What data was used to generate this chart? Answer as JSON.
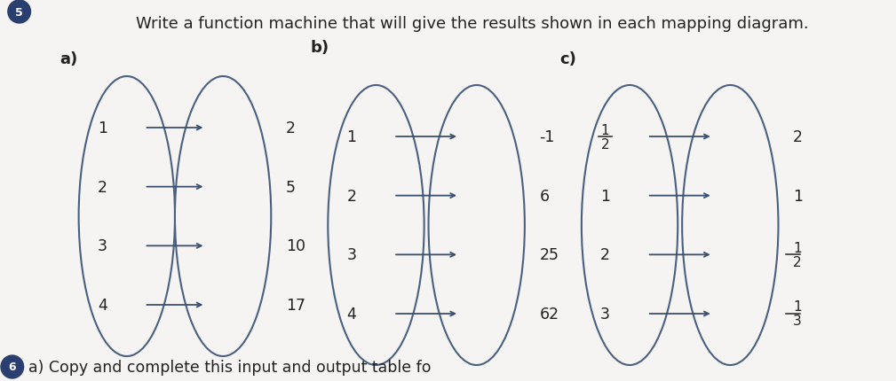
{
  "title": "Write a function machine that will give the results shown in each mapping diagram.",
  "question_number": "5",
  "bottom_text": "a) Copy and complete this input and output table fo",
  "bg_color": "#f5f4f2",
  "ellipse_color": "#4a6080",
  "arrow_color": "#3a5070",
  "text_color": "#222222",
  "diagram_a": {
    "label": "a)",
    "inputs": [
      "1",
      "2",
      "3",
      "4"
    ],
    "outputs": [
      "2",
      "5",
      "10",
      "17"
    ]
  },
  "diagram_b": {
    "label": "b)",
    "inputs": [
      "1",
      "2",
      "3",
      "4"
    ],
    "outputs": [
      "-1",
      "6",
      "25",
      "62"
    ]
  },
  "diagram_c": {
    "label": "c)",
    "inputs": [
      "1/2",
      "1",
      "2",
      "3"
    ],
    "outputs": [
      "2",
      "1",
      "1/2",
      "1/3"
    ]
  }
}
